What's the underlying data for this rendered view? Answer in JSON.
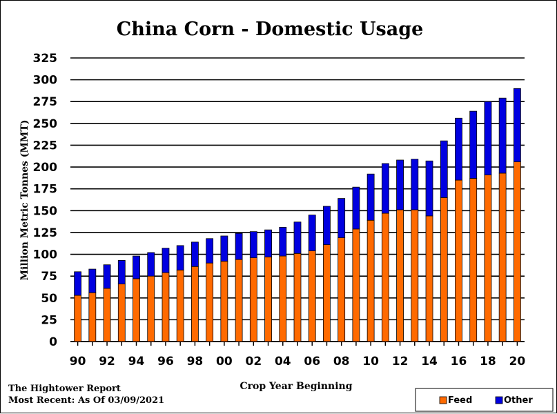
{
  "footer": {
    "source": "The Hightower Report",
    "date": "Most Recent: As Of 03/09/2021"
  },
  "colors": {
    "feed": "#ff6a00",
    "other": "#0000e0",
    "grid": "#000000"
  },
  "chart_data": {
    "type": "bar",
    "stacked": true,
    "title": "China Corn - Domestic Usage",
    "xlabel": "Crop Year Beginning",
    "ylabel": "Million Metric Tonnes (MMT)",
    "ylim": [
      0,
      325
    ],
    "yticks": [
      0,
      25,
      50,
      75,
      100,
      125,
      150,
      175,
      200,
      225,
      250,
      275,
      300,
      325
    ],
    "grid": true,
    "legend_position": "bottom-right",
    "categories": [
      "90",
      "91",
      "92",
      "93",
      "94",
      "95",
      "96",
      "97",
      "98",
      "99",
      "00",
      "01",
      "02",
      "03",
      "04",
      "05",
      "06",
      "07",
      "08",
      "09",
      "10",
      "11",
      "12",
      "13",
      "14",
      "15",
      "16",
      "17",
      "18",
      "19",
      "20"
    ],
    "tick_labels": [
      "90",
      "",
      "92",
      "",
      "94",
      "",
      "96",
      "",
      "98",
      "",
      "00",
      "",
      "02",
      "",
      "04",
      "",
      "06",
      "",
      "08",
      "",
      "10",
      "",
      "12",
      "",
      "14",
      "",
      "16",
      "",
      "18",
      "",
      "20"
    ],
    "series": [
      {
        "name": "Feed",
        "color": "#ff6a00",
        "values": [
          53,
          56,
          61,
          66,
          72,
          75,
          79,
          82,
          86,
          90,
          92,
          94,
          96,
          97,
          98,
          101,
          104,
          111,
          119,
          129,
          139,
          147,
          151,
          151,
          144,
          165,
          185,
          187,
          191,
          193,
          206
        ]
      },
      {
        "name": "Other",
        "color": "#0000e0",
        "values": [
          27,
          27,
          27,
          27,
          26,
          27,
          28,
          28,
          28,
          28,
          29,
          30,
          30,
          31,
          33,
          36,
          41,
          44,
          45,
          48,
          53,
          57,
          57,
          58,
          63,
          65,
          71,
          77,
          84,
          86,
          84
        ]
      }
    ]
  }
}
